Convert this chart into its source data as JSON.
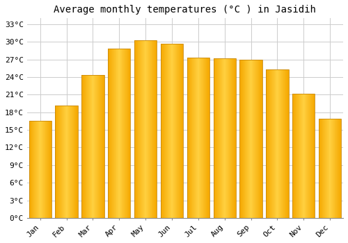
{
  "title": "Average monthly temperatures (°C ) in Jasidih",
  "months": [
    "Jan",
    "Feb",
    "Mar",
    "Apr",
    "May",
    "Jun",
    "Jul",
    "Aug",
    "Sep",
    "Oct",
    "Nov",
    "Dec"
  ],
  "values": [
    16.5,
    19.2,
    24.3,
    28.8,
    30.2,
    29.7,
    27.3,
    27.2,
    26.9,
    25.3,
    21.1,
    16.9
  ],
  "bar_color_center": "#FFD040",
  "bar_color_edge": "#F5A800",
  "bar_outline_color": "#C8880A",
  "background_color": "#ffffff",
  "grid_color": "#cccccc",
  "ylim": [
    0,
    34
  ],
  "yticks": [
    0,
    3,
    6,
    9,
    12,
    15,
    18,
    21,
    24,
    27,
    30,
    33
  ],
  "ytick_labels": [
    "0°C",
    "3°C",
    "6°C",
    "9°C",
    "12°C",
    "15°C",
    "18°C",
    "21°C",
    "24°C",
    "27°C",
    "30°C",
    "33°C"
  ],
  "title_fontsize": 10,
  "tick_fontsize": 8,
  "bar_width": 0.85
}
